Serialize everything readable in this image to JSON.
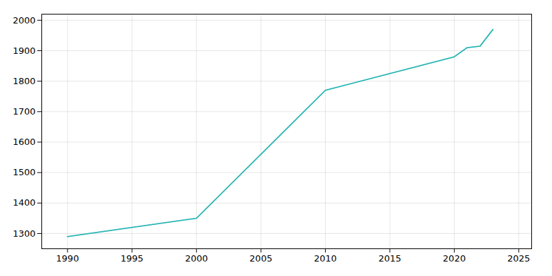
{
  "chart_data": {
    "type": "line",
    "x": [
      1990,
      2000,
      2010,
      2020,
      2021,
      2022,
      2023
    ],
    "values": [
      1290,
      1350,
      1770,
      1880,
      1910,
      1915,
      1970
    ],
    "color": "#2ab5b5",
    "xlim": [
      1988,
      2026
    ],
    "ylim": [
      1250,
      2020
    ],
    "xticks": [
      1990,
      1995,
      2000,
      2005,
      2010,
      2015,
      2020,
      2025
    ],
    "yticks": [
      1300,
      1400,
      1500,
      1600,
      1700,
      1800,
      1900,
      2000
    ],
    "grid": true
  }
}
